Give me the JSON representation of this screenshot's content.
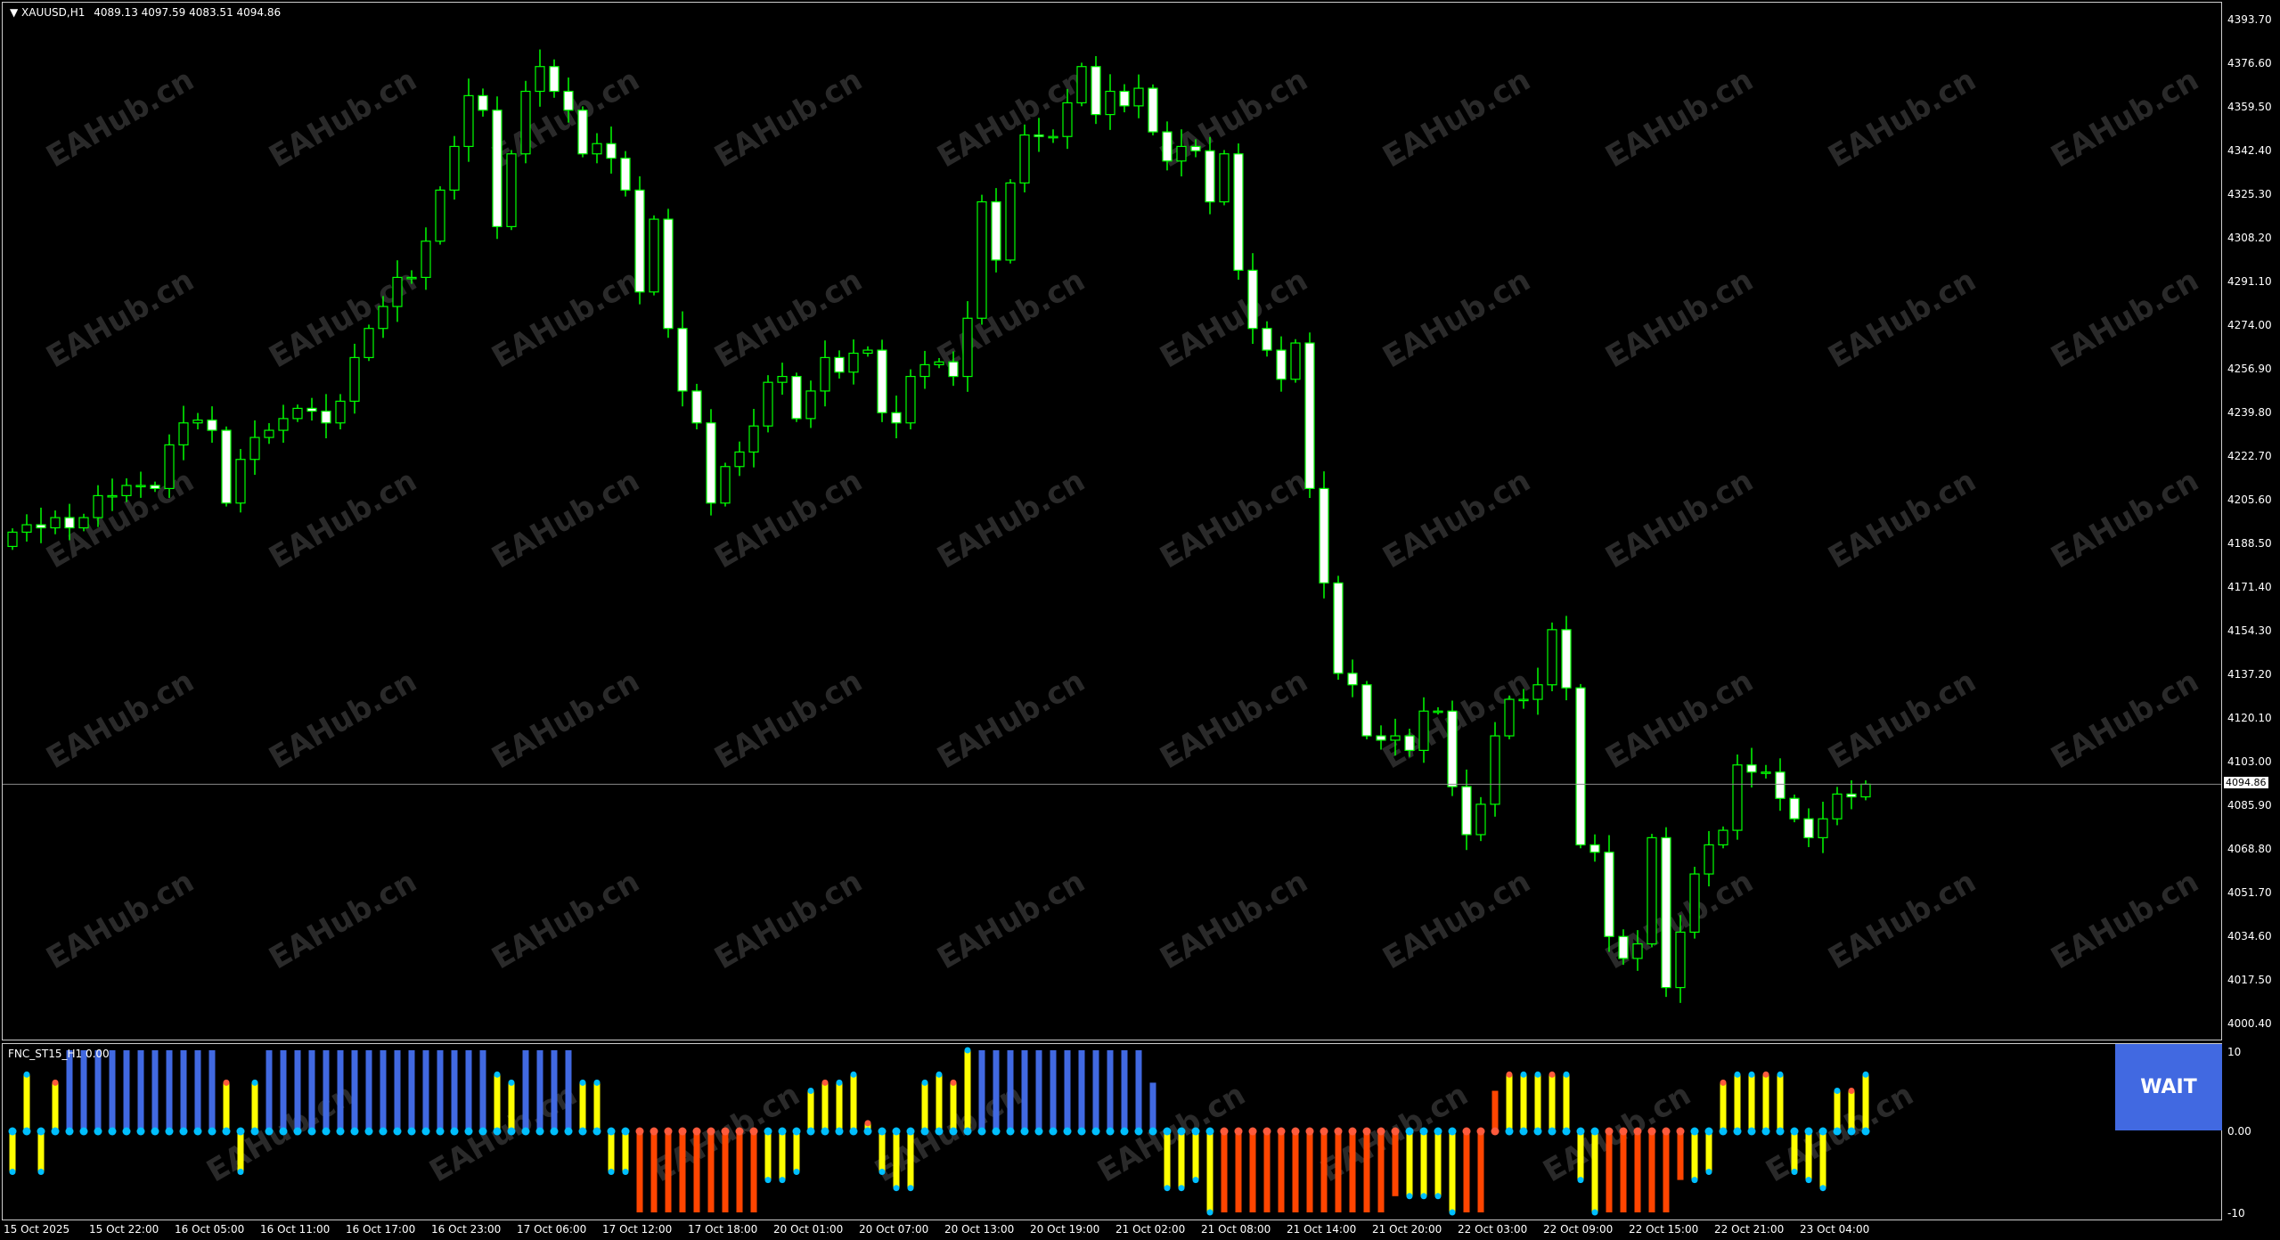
{
  "chart_header": {
    "symbol": "XAUUSD,H1",
    "ohlc": "4089.13 4097.59 4083.51 4094.86"
  },
  "indicator": {
    "label": "FNC_ST15_H1 0.00",
    "axis": [
      "10",
      "0.00",
      "-10"
    ],
    "signal_button": "WAIT"
  },
  "watermark": "EAHub.cn",
  "colors": {
    "background": "#000000",
    "bull_candle": "#000000",
    "bear_candle": "#ffffff",
    "candle_outline": "#00ff00",
    "blue_bar": "#4169e1",
    "yellow_bar": "#ffff00",
    "red_bar": "#ff4500",
    "dot_cyan": "#00bfff",
    "dot_red": "#ff5a3c",
    "wait_button": "#4169e1"
  },
  "chart_data": {
    "type": "candlestick",
    "symbol": "XAUUSD",
    "timeframe": "H1",
    "ylim": [
      4000.4,
      4393.7
    ],
    "y_ticks": [
      "4393.70",
      "4376.60",
      "4359.50",
      "4342.40",
      "4325.30",
      "4308.20",
      "4291.10",
      "4274.00",
      "4256.90",
      "4239.80",
      "4222.70",
      "4205.60",
      "4188.50",
      "4171.40",
      "4154.30",
      "4137.20",
      "4120.10",
      "4103.00",
      "4085.90",
      "4068.80",
      "4051.70",
      "4034.60",
      "4017.50",
      "4000.40"
    ],
    "current_price": "4094.86",
    "first_open": 4188.0,
    "close": [
      4193.6,
      4196.5,
      4195.3,
      4199.3,
      4195.3,
      4199.3,
      4207.9,
      4207.9,
      4211.9,
      4211.9,
      4210.7,
      4227.8,
      4236.4,
      4237.5,
      4233.5,
      4205.0,
      4222.1,
      4230.7,
      4233.5,
      4238.1,
      4242.1,
      4241.0,
      4236.4,
      4244.9,
      4262.0,
      4273.4,
      4282.0,
      4293.4,
      4293.4,
      4307.6,
      4327.6,
      4344.7,
      4364.6,
      4358.9,
      4313.3,
      4341.8,
      4366.3,
      4376.0,
      4366.3,
      4358.9,
      4341.8,
      4345.8,
      4340.1,
      4327.6,
      4287.7,
      4316.2,
      4273.4,
      4248.9,
      4236.4,
      4205.0,
      4219.3,
      4225.0,
      4235.2,
      4252.3,
      4254.6,
      4238.1,
      4248.9,
      4262.0,
      4256.3,
      4263.7,
      4264.9,
      4240.4,
      4236.4,
      4254.6,
      4259.2,
      4260.3,
      4254.6,
      4277.4,
      4323.0,
      4300.2,
      4330.4,
      4349.2,
      4348.6,
      4348.6,
      4361.8,
      4376.0,
      4357.2,
      4366.3,
      4360.6,
      4367.5,
      4350.4,
      4339.0,
      4344.7,
      4343.0,
      4323.0,
      4341.8,
      4296.2,
      4273.4,
      4264.9,
      4253.5,
      4267.7,
      4210.7,
      4173.7,
      4138.3,
      4133.8,
      4113.8,
      4112.1,
      4113.8,
      4108.1,
      4123.5,
      4123.5,
      4093.9,
      4075.1,
      4087.0,
      4113.8,
      4128.1,
      4128.1,
      4133.8,
      4155.4,
      4132.6,
      4071.1,
      4068.2,
      4035.2,
      4026.6,
      4032.3,
      4073.9,
      4015.2,
      4036.9,
      4059.7,
      4071.1,
      4076.8,
      4102.4,
      4099.6,
      4099.6,
      4089.3,
      4081.3,
      4073.9,
      4081.3,
      4091.0,
      4089.9,
      4094.86
    ],
    "x_tick_labels": [
      {
        "bar": 0,
        "label": "15 Oct 2025"
      },
      {
        "bar": 6,
        "label": "15 Oct 22:00"
      },
      {
        "bar": 12,
        "label": "16 Oct 05:00"
      },
      {
        "bar": 18,
        "label": "16 Oct 11:00"
      },
      {
        "bar": 24,
        "label": "16 Oct 17:00"
      },
      {
        "bar": 30,
        "label": "16 Oct 23:00"
      },
      {
        "bar": 36,
        "label": "17 Oct 06:00"
      },
      {
        "bar": 42,
        "label": "17 Oct 12:00"
      },
      {
        "bar": 48,
        "label": "17 Oct 18:00"
      },
      {
        "bar": 54,
        "label": "20 Oct 01:00"
      },
      {
        "bar": 60,
        "label": "20 Oct 07:00"
      },
      {
        "bar": 66,
        "label": "20 Oct 13:00"
      },
      {
        "bar": 72,
        "label": "20 Oct 19:00"
      },
      {
        "bar": 78,
        "label": "21 Oct 02:00"
      },
      {
        "bar": 84,
        "label": "21 Oct 08:00"
      },
      {
        "bar": 90,
        "label": "21 Oct 14:00"
      },
      {
        "bar": 96,
        "label": "21 Oct 20:00"
      },
      {
        "bar": 102,
        "label": "22 Oct 03:00"
      },
      {
        "bar": 108,
        "label": "22 Oct 09:00"
      },
      {
        "bar": 114,
        "label": "22 Oct 15:00"
      },
      {
        "bar": 120,
        "label": "22 Oct 21:00"
      },
      {
        "bar": 126,
        "label": "23 Oct 04:00"
      }
    ],
    "indicator_ylim": [
      -10,
      10
    ],
    "indicator_values": [
      -5,
      7,
      -5,
      6,
      10,
      10,
      10,
      10,
      10,
      10,
      10,
      10,
      10,
      10,
      10,
      6,
      -5,
      6,
      10,
      10,
      10,
      10,
      10,
      10,
      10,
      10,
      10,
      10,
      10,
      10,
      10,
      10,
      10,
      10,
      7,
      6,
      10,
      10,
      10,
      10,
      6,
      6,
      -5,
      -5,
      -10,
      -10,
      -10,
      -10,
      -10,
      -10,
      -10,
      -10,
      -10,
      -6,
      -6,
      -5,
      5,
      6,
      6,
      7,
      1,
      -5,
      -7,
      -7,
      6,
      7,
      6,
      10,
      10,
      10,
      10,
      10,
      10,
      10,
      10,
      10,
      10,
      10,
      10,
      10,
      6,
      -7,
      -7,
      -6,
      -10,
      -10,
      -10,
      -10,
      -10,
      -10,
      -10,
      -10,
      -10,
      -10,
      -10,
      -10,
      -10,
      -8,
      -8,
      -8,
      -8,
      -10,
      -10,
      -10,
      5,
      7,
      7,
      7,
      7,
      7,
      -6,
      -10,
      -10,
      -10,
      -10,
      -10,
      -10,
      -6,
      -6,
      -5,
      6,
      7,
      7,
      7,
      7,
      -5,
      -6,
      -7,
      5,
      5,
      7
    ],
    "indicator_colors": "YYYYBBBBBBBBBBBYYYBBBBBBBBBBBBBBBBYYBBBBYYYYRRRRRRRRRYYYYYYYYYYYYYYYBBBBBBBBBBBBBYYYYRRRRRRRRRRRRRYYYYRRRYYYYYYYRRRRRRYYYYYYYYYYYYYY"
  }
}
